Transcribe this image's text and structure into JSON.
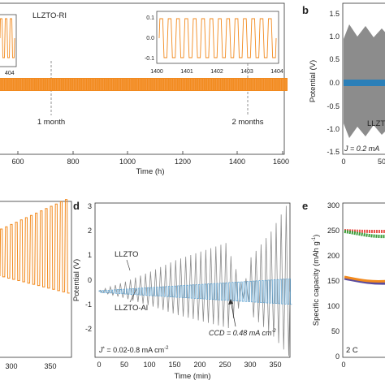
{
  "colors": {
    "orange": "#F28A1E",
    "orange_light": "#F6A960",
    "gray": "#8C8C8C",
    "blue": "#2B7FB8",
    "red": "#E8524A",
    "green": "#3A9E3A",
    "purple": "#5B4C9E"
  },
  "panel_a": {
    "label": "LLZTO-RI",
    "xlabel": "Time (h)",
    "xticks": [
      "600",
      "800",
      "1000",
      "1200",
      "1400",
      "1600"
    ],
    "inset_left_tick": "404",
    "inset_right_xticks": [
      "1400",
      "1401",
      "1402",
      "1403",
      "1404"
    ],
    "inset_right_yticks": [
      "0.1",
      "0.0",
      "-0.1"
    ],
    "markers": [
      "1 month",
      "2 months"
    ]
  },
  "panel_b": {
    "letter": "b",
    "ylabel": "Potential (V)",
    "yticks": [
      "1.5",
      "1.0",
      "0.5",
      "0.0",
      "-0.5",
      "-1.0",
      "-1.5"
    ],
    "xticks": [
      "0",
      "50"
    ],
    "series_label": "LLZT",
    "current_note": "J = 0.2 mA"
  },
  "panel_c": {
    "xticks": [
      "300",
      "350"
    ]
  },
  "panel_d": {
    "letter": "d",
    "ylabel": "Potential (V)",
    "xlabel": "Time (min)",
    "yticks": [
      "3",
      "2",
      "1",
      "0",
      "-1",
      "-2"
    ],
    "xticks": [
      "0",
      "50",
      "100",
      "150",
      "200",
      "250",
      "300",
      "350"
    ],
    "label_llzto": "LLZTO",
    "label_llzto_al": "LLZTO-Al",
    "ccd_note": "CCD = 0.48 mA cm",
    "ccd_sup": "-2",
    "current_note_prefix": "J",
    "current_note_star": "*",
    "current_note_rest": " = 0.02-0.8 mA cm",
    "current_note_sup": "-2"
  },
  "panel_e": {
    "letter": "e",
    "ylabel": "Specific capacity (mAh g",
    "ylabel_sup": "-1",
    "ylabel_end": ")",
    "yticks": [
      "300",
      "250",
      "200",
      "150",
      "100",
      "50",
      "0"
    ],
    "xticks": [
      "0"
    ],
    "rate_label": "2 C"
  },
  "chart_data": [
    {
      "type": "line",
      "panel": "a",
      "title": "LLZTO-RI",
      "xlabel": "Time (h)",
      "ylabel": "",
      "xlim": [
        470,
        1600
      ],
      "series": [
        {
          "name": "LLZTO-RI",
          "x": [
            470,
            1520
          ],
          "y": [
            -0.06,
            0.06
          ]
        }
      ],
      "annotations": [
        {
          "text": "1 month",
          "x": 720
        },
        {
          "text": "2 months",
          "x": 1440
        }
      ]
    },
    {
      "type": "line",
      "panel": "b",
      "xlabel": "",
      "ylabel": "Potential (V)",
      "ylim": [
        -1.5,
        1.5
      ],
      "series": [
        {
          "name": "LLZT",
          "envelope": [
            -0.9,
            0.9
          ],
          "color": "gray"
        },
        {
          "name": "",
          "envelope": [
            -0.04,
            0.04
          ],
          "color": "blue"
        }
      ]
    },
    {
      "type": "line",
      "panel": "d",
      "xlabel": "Time (min)",
      "ylabel": "Potential (V)",
      "xlim": [
        -8,
        380
      ],
      "ylim": [
        -2.3,
        3.1
      ],
      "series": [
        {
          "name": "LLZTO",
          "x": [
            0,
            50,
            100,
            150,
            200,
            250,
            285,
            300,
            340,
            370
          ],
          "amplitude": [
            0.05,
            0.35,
            0.7,
            1.1,
            1.4,
            1.7,
            0.1,
            1.2,
            2.1,
            3.0
          ]
        },
        {
          "name": "LLZTO-Al",
          "x": [
            0,
            380
          ],
          "amplitude": [
            0.03,
            0.45
          ]
        }
      ],
      "annotations": [
        {
          "text": "CCD = 0.48 mA cm-2",
          "x": 285
        }
      ]
    },
    {
      "type": "scatter",
      "panel": "e",
      "xlabel": "",
      "ylabel": "Specific capacity (mAh g-1)",
      "ylim": [
        0,
        300
      ],
      "series": [
        {
          "name": "",
          "color": "red",
          "y_start": 250,
          "y_end": 248
        },
        {
          "name": "",
          "color": "green",
          "y_start": 250,
          "y_end": 225
        },
        {
          "name": "",
          "color": "orange",
          "y_start": 160,
          "y_end": 150
        },
        {
          "name": "",
          "color": "purple",
          "y_start": 155,
          "y_end": 145
        }
      ]
    }
  ]
}
